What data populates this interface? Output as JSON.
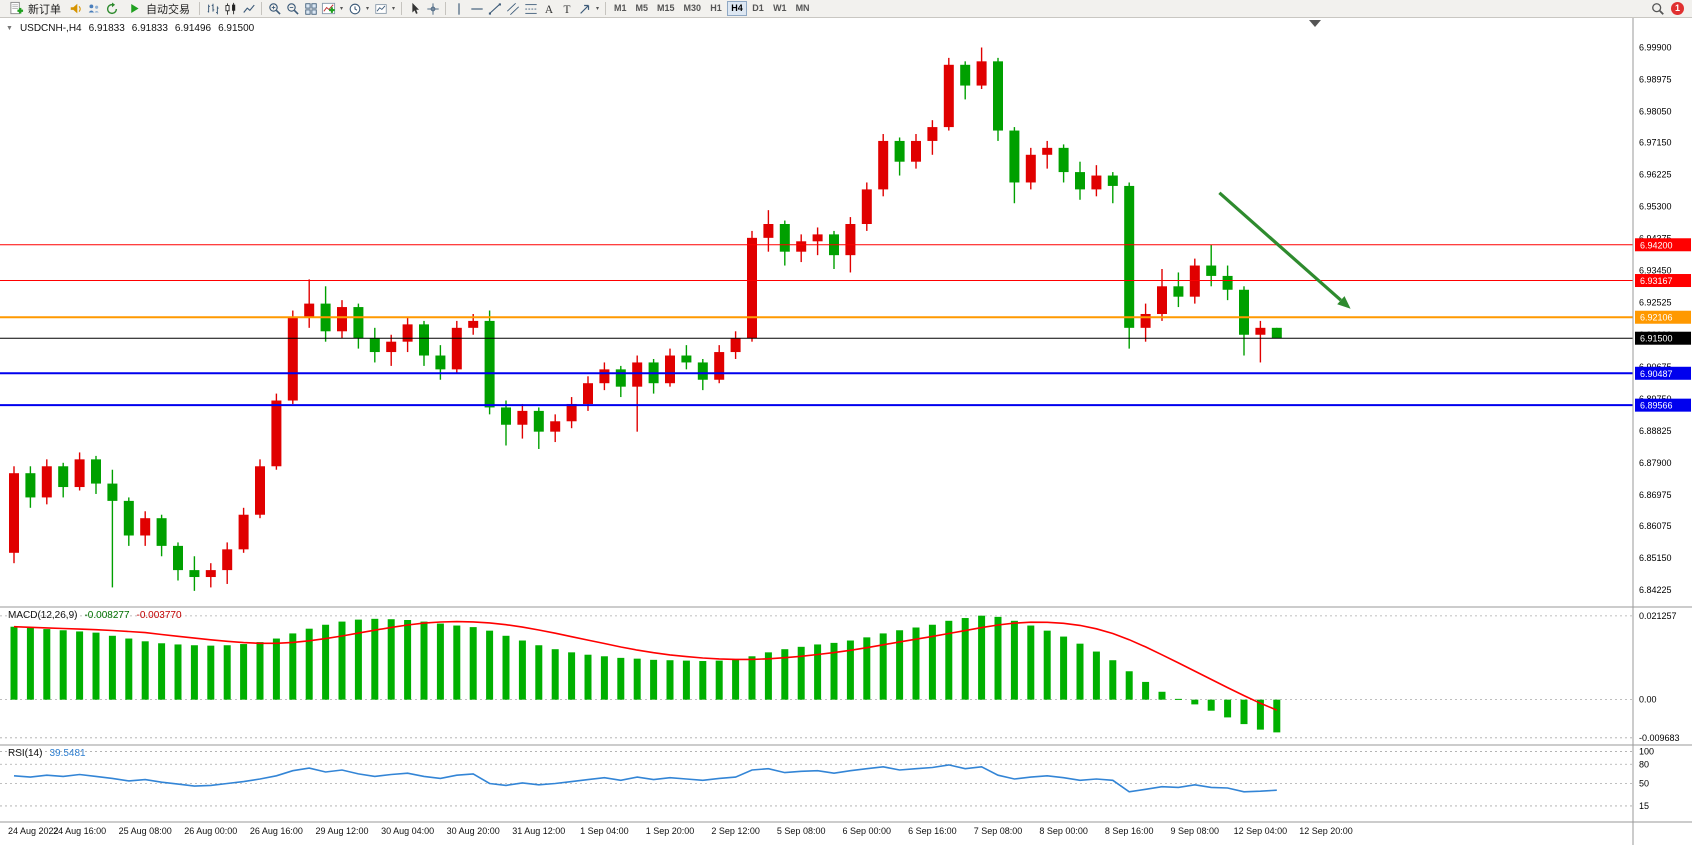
{
  "toolbar": {
    "new_order_label": "新订单",
    "auto_trading_label": "自动交易",
    "timeframes": [
      "M1",
      "M5",
      "M15",
      "M30",
      "H1",
      "H4",
      "D1",
      "W1",
      "MN"
    ],
    "active_timeframe": "H4",
    "notification_count": "1",
    "icons": [
      "new-order",
      "alerts-horn",
      "community",
      "refresh",
      "auto-trading-play",
      "bar-chart",
      "candlestick-chart",
      "line-chart",
      "zoom-in",
      "zoom-out",
      "tile-windows",
      "indicators",
      "periods-clock",
      "templates",
      "cursor",
      "crosshair",
      "vertical-line",
      "horizontal-line",
      "trendline",
      "equidistant-channel",
      "fibonacci",
      "text",
      "text-label",
      "arrow-tools",
      "search"
    ]
  },
  "chart": {
    "symbol_period": "USDCNH-,H4",
    "open": "6.91833",
    "high": "6.91833",
    "low": "6.91496",
    "close": "6.91500"
  },
  "indicators": {
    "macd": {
      "name": "MACD(12,26,9)",
      "main_value": "-0.008277",
      "signal_value": "-0.003770"
    },
    "rsi": {
      "name": "RSI(14)",
      "value": "39.5481"
    }
  },
  "chart_data": {
    "type": "candlestick",
    "symbol": "USDCNH-",
    "period": "H4",
    "up_color": "#e00000",
    "down_color": "#00a000",
    "ylim": [
      6.83734,
      7.00752
    ],
    "price_ticks": [
      "6.99900",
      "6.98975",
      "6.98050",
      "6.97150",
      "6.96225",
      "6.95300",
      "6.94375",
      "6.93450",
      "6.92525",
      "6.91600",
      "6.90675",
      "6.89750",
      "6.88825",
      "6.87900",
      "6.86975",
      "6.86075",
      "6.85150",
      "6.84225"
    ],
    "candles": [
      [
        6.853,
        6.878,
        6.85,
        6.876
      ],
      [
        6.876,
        6.878,
        6.866,
        6.869
      ],
      [
        6.869,
        6.88,
        6.867,
        6.878
      ],
      [
        6.878,
        6.879,
        6.869,
        6.872
      ],
      [
        6.872,
        6.882,
        6.871,
        6.88
      ],
      [
        6.88,
        6.881,
        6.87,
        6.873
      ],
      [
        6.873,
        6.877,
        6.843,
        6.868
      ],
      [
        6.868,
        6.869,
        6.855,
        6.858
      ],
      [
        6.858,
        6.865,
        6.855,
        6.863
      ],
      [
        6.863,
        6.864,
        6.852,
        6.855
      ],
      [
        6.855,
        6.856,
        6.845,
        6.848
      ],
      [
        6.848,
        6.852,
        6.842,
        6.846
      ],
      [
        6.846,
        6.85,
        6.843,
        6.848
      ],
      [
        6.848,
        6.856,
        6.844,
        6.854
      ],
      [
        6.854,
        6.866,
        6.853,
        6.864
      ],
      [
        6.864,
        6.88,
        6.863,
        6.878
      ],
      [
        6.878,
        6.899,
        6.877,
        6.897
      ],
      [
        6.897,
        6.923,
        6.896,
        6.921
      ],
      [
        6.921,
        6.932,
        6.918,
        6.925
      ],
      [
        6.925,
        6.93,
        6.914,
        6.917
      ],
      [
        6.917,
        6.926,
        6.915,
        6.924
      ],
      [
        6.924,
        6.925,
        6.912,
        6.915
      ],
      [
        6.915,
        6.918,
        6.908,
        6.911
      ],
      [
        6.911,
        6.916,
        6.907,
        6.914
      ],
      [
        6.914,
        6.921,
        6.911,
        6.919
      ],
      [
        6.919,
        6.92,
        6.907,
        6.91
      ],
      [
        6.91,
        6.913,
        6.903,
        6.906
      ],
      [
        6.906,
        6.92,
        6.905,
        6.918
      ],
      [
        6.918,
        6.922,
        6.916,
        6.92
      ],
      [
        6.92,
        6.923,
        6.893,
        6.895
      ],
      [
        6.895,
        6.897,
        6.884,
        6.89
      ],
      [
        6.89,
        6.896,
        6.886,
        6.894
      ],
      [
        6.894,
        6.895,
        6.883,
        6.888
      ],
      [
        6.888,
        6.893,
        6.885,
        6.891
      ],
      [
        6.891,
        6.898,
        6.889,
        6.896
      ],
      [
        6.896,
        6.904,
        6.894,
        6.902
      ],
      [
        6.902,
        6.908,
        6.9,
        6.906
      ],
      [
        6.906,
        6.907,
        6.898,
        6.901
      ],
      [
        6.901,
        6.91,
        6.888,
        6.908
      ],
      [
        6.908,
        6.909,
        6.899,
        6.902
      ],
      [
        6.902,
        6.912,
        6.901,
        6.91
      ],
      [
        6.91,
        6.913,
        6.906,
        6.908
      ],
      [
        6.908,
        6.909,
        6.9,
        6.903
      ],
      [
        6.903,
        6.913,
        6.902,
        6.911
      ],
      [
        6.911,
        6.917,
        6.909,
        6.915
      ],
      [
        6.915,
        6.946,
        6.914,
        6.944
      ],
      [
        6.944,
        6.952,
        6.94,
        6.948
      ],
      [
        6.948,
        6.949,
        6.936,
        6.94
      ],
      [
        6.94,
        6.945,
        6.937,
        6.943
      ],
      [
        6.943,
        6.947,
        6.939,
        6.945
      ],
      [
        6.945,
        6.946,
        6.935,
        6.939
      ],
      [
        6.939,
        6.95,
        6.934,
        6.948
      ],
      [
        6.948,
        6.96,
        6.946,
        6.958
      ],
      [
        6.958,
        6.974,
        6.956,
        6.972
      ],
      [
        6.972,
        6.973,
        6.962,
        6.966
      ],
      [
        6.966,
        6.974,
        6.964,
        6.972
      ],
      [
        6.972,
        6.978,
        6.968,
        6.976
      ],
      [
        6.976,
        6.996,
        6.975,
        6.994
      ],
      [
        6.994,
        6.995,
        6.984,
        6.988
      ],
      [
        6.988,
        6.999,
        6.987,
        6.995
      ],
      [
        6.995,
        6.996,
        6.972,
        6.975
      ],
      [
        6.975,
        6.976,
        6.954,
        6.96
      ],
      [
        6.96,
        6.97,
        6.958,
        6.968
      ],
      [
        6.968,
        6.972,
        6.964,
        6.97
      ],
      [
        6.97,
        6.971,
        6.96,
        6.963
      ],
      [
        6.963,
        6.966,
        6.955,
        6.958
      ],
      [
        6.958,
        6.965,
        6.956,
        6.962
      ],
      [
        6.962,
        6.963,
        6.954,
        6.959
      ],
      [
        6.959,
        6.96,
        6.912,
        6.918
      ],
      [
        6.918,
        6.925,
        6.914,
        6.922
      ],
      [
        6.922,
        6.935,
        6.92,
        6.93
      ],
      [
        6.93,
        6.934,
        6.924,
        6.927
      ],
      [
        6.927,
        6.938,
        6.925,
        6.936
      ],
      [
        6.936,
        6.942,
        6.93,
        6.933
      ],
      [
        6.933,
        6.936,
        6.926,
        6.929
      ],
      [
        6.929,
        6.93,
        6.91,
        6.916
      ],
      [
        6.916,
        6.92,
        6.908,
        6.918
      ],
      [
        6.918,
        6.918,
        6.915,
        6.915
      ]
    ],
    "levels": [
      {
        "price": 6.942,
        "label": "6.94200",
        "color": "#ff0000",
        "width": 1
      },
      {
        "price": 6.93167,
        "label": "6.93167",
        "color": "#ff0000",
        "width": 1
      },
      {
        "price": 6.92106,
        "label": "6.92106",
        "color": "#ff9900",
        "width": 2
      },
      {
        "price": 6.90487,
        "label": "6.90487",
        "color": "#0000ee",
        "width": 2
      },
      {
        "price": 6.89566,
        "label": "6.89566",
        "color": "#0000ee",
        "width": 2
      }
    ],
    "current_price": {
      "price": 6.915,
      "label": "6.91500",
      "color": "#000000"
    },
    "trend_arrow": {
      "from_bar": 73.5,
      "from_price": 6.957,
      "to_bar": 81.5,
      "to_price": 6.9235,
      "color": "#2e8b2e"
    },
    "time_labels": [
      "24 Aug 2022",
      "24 Aug 16:00",
      "25 Aug 08:00",
      "26 Aug 00:00",
      "26 Aug 16:00",
      "29 Aug 12:00",
      "30 Aug 04:00",
      "30 Aug 20:00",
      "31 Aug 12:00",
      "1 Sep 04:00",
      "1 Sep 20:00",
      "2 Sep 12:00",
      "5 Sep 08:00",
      "6 Sep 00:00",
      "6 Sep 16:00",
      "7 Sep 08:00",
      "8 Sep 00:00",
      "8 Sep 16:00",
      "9 Sep 08:00",
      "12 Sep 04:00",
      "12 Sep 20:00"
    ],
    "bars_per_time_label": 4,
    "macd": {
      "ylim": [
        -0.0115,
        0.0235
      ],
      "histogram_color": "#00b000",
      "signal_color": "#ff0000",
      "signal_period": 9,
      "axis_labels": [
        "0.021257",
        "0.00",
        "-0.009683"
      ],
      "axis_values": [
        0.021257,
        0,
        -0.009683
      ],
      "values": [
        0.0185,
        0.0182,
        0.0179,
        0.0176,
        0.0173,
        0.017,
        0.0162,
        0.0155,
        0.0148,
        0.0143,
        0.014,
        0.0138,
        0.0137,
        0.0138,
        0.0141,
        0.0146,
        0.0155,
        0.0168,
        0.018,
        0.019,
        0.0198,
        0.0203,
        0.0205,
        0.0204,
        0.0202,
        0.0198,
        0.0193,
        0.0188,
        0.0184,
        0.0175,
        0.0162,
        0.015,
        0.0138,
        0.0128,
        0.012,
        0.0114,
        0.011,
        0.0106,
        0.0104,
        0.0101,
        0.01,
        0.0099,
        0.0098,
        0.0099,
        0.0102,
        0.011,
        0.012,
        0.0128,
        0.0134,
        0.014,
        0.0144,
        0.015,
        0.0158,
        0.0168,
        0.0176,
        0.0183,
        0.019,
        0.02,
        0.0207,
        0.0213,
        0.021,
        0.02,
        0.0188,
        0.0175,
        0.016,
        0.0142,
        0.0122,
        0.01,
        0.0072,
        0.0045,
        0.002,
        0.0002,
        -0.0012,
        -0.0028,
        -0.0045,
        -0.0062,
        -0.0076,
        -0.0083
      ]
    },
    "rsi": {
      "ylim": [
        -10,
        110
      ],
      "line_color": "#3385d6",
      "axis_labels": [
        "100",
        "80",
        "50",
        "15"
      ],
      "axis_values": [
        100,
        80,
        50,
        15
      ],
      "values": [
        62,
        60,
        63,
        61,
        64,
        61,
        58,
        54,
        56,
        52,
        49,
        46,
        47,
        50,
        53,
        57,
        62,
        70,
        74,
        68,
        71,
        65,
        61,
        64,
        66,
        61,
        58,
        63,
        65,
        50,
        47,
        51,
        48,
        50,
        53,
        56,
        59,
        55,
        60,
        56,
        59,
        57,
        55,
        58,
        60,
        71,
        73,
        67,
        69,
        70,
        66,
        70,
        73,
        76,
        71,
        73,
        75,
        79,
        73,
        76,
        63,
        57,
        60,
        62,
        59,
        55,
        57,
        55,
        37,
        41,
        45,
        44,
        48,
        44,
        43,
        37,
        38,
        39.5
      ]
    }
  }
}
